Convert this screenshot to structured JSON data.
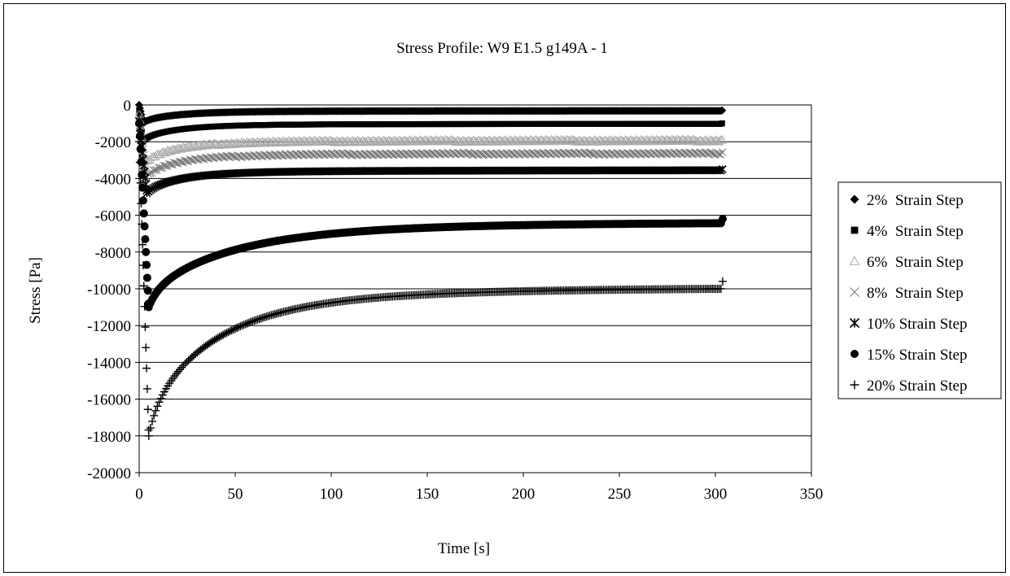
{
  "chart_data": {
    "type": "scatter",
    "title": "Stress Profile: W9 E1.5 g149A - 1",
    "xlabel": "Time [s]",
    "ylabel": "Stress [Pa]",
    "xlim": [
      0,
      350
    ],
    "ylim": [
      -20000,
      0
    ],
    "x_ticks": [
      "0",
      "50",
      "100",
      "150",
      "200",
      "250",
      "300",
      "350"
    ],
    "y_ticks": [
      "0",
      "-2000",
      "-4000",
      "-6000",
      "-8000",
      "-10000",
      "-12000",
      "-14000",
      "-16000",
      "-18000",
      "-20000"
    ],
    "grid": "horizontal",
    "legend_position": "right",
    "series": [
      {
        "name": "2%  Strain Step",
        "marker": "diamond",
        "color": "#000000",
        "peak_time": 2,
        "peak_stress": -1000,
        "final_time": 304,
        "final_stress": -300,
        "rate": 0.05,
        "points": [
          [
            0,
            0
          ],
          [
            2,
            -1000
          ],
          [
            10,
            -700
          ],
          [
            50,
            -450
          ],
          [
            100,
            -380
          ],
          [
            200,
            -330
          ],
          [
            304,
            -300
          ]
        ]
      },
      {
        "name": "4%  Strain Step",
        "marker": "square",
        "color": "#000000",
        "peak_time": 2,
        "peak_stress": -2000,
        "final_time": 304,
        "final_stress": -1000,
        "rate": 0.05,
        "points": [
          [
            0,
            -300
          ],
          [
            2,
            -2000
          ],
          [
            10,
            -1400
          ],
          [
            50,
            -1150
          ],
          [
            100,
            -1080
          ],
          [
            200,
            -1030
          ],
          [
            304,
            -1000
          ]
        ]
      },
      {
        "name": "6%  Strain Step",
        "marker": "triangle",
        "color": "#aaaaaa",
        "peak_time": 3,
        "peak_stress": -3200,
        "final_time": 304,
        "final_stress": -1900,
        "rate": 0.05,
        "points": [
          [
            0,
            -500
          ],
          [
            3,
            -3200
          ],
          [
            10,
            -2500
          ],
          [
            50,
            -2150
          ],
          [
            100,
            -2050
          ],
          [
            200,
            -1950
          ],
          [
            304,
            -1900
          ]
        ]
      },
      {
        "name": "8%  Strain Step",
        "marker": "x",
        "color": "#777777",
        "peak_time": 3,
        "peak_stress": -4000,
        "final_time": 304,
        "final_stress": -2600,
        "rate": 0.05,
        "points": [
          [
            0,
            -700
          ],
          [
            3,
            -4000
          ],
          [
            10,
            -3200
          ],
          [
            50,
            -2900
          ],
          [
            100,
            -2780
          ],
          [
            200,
            -2680
          ],
          [
            304,
            -2600
          ]
        ]
      },
      {
        "name": "10% Strain Step",
        "marker": "asterisk",
        "color": "#000000",
        "peak_time": 4,
        "peak_stress": -4800,
        "final_time": 304,
        "final_stress": -3500,
        "rate": 0.05,
        "points": [
          [
            0,
            -900
          ],
          [
            4,
            -4800
          ],
          [
            10,
            -4200
          ],
          [
            50,
            -3850
          ],
          [
            100,
            -3700
          ],
          [
            200,
            -3580
          ],
          [
            304,
            -3500
          ]
        ]
      },
      {
        "name": "15% Strain Step",
        "marker": "circle",
        "color": "#000000",
        "peak_time": 5,
        "peak_stress": -11000,
        "final_time": 304,
        "final_stress": -6200,
        "rate": 0.02,
        "points": [
          [
            0,
            -1000
          ],
          [
            5,
            -11000
          ],
          [
            20,
            -9000
          ],
          [
            50,
            -7800
          ],
          [
            100,
            -7000
          ],
          [
            200,
            -6500
          ],
          [
            304,
            -6200
          ]
        ]
      },
      {
        "name": "20% Strain Step",
        "marker": "plus",
        "color": "#000000",
        "peak_time": 5,
        "peak_stress": -18000,
        "final_time": 304,
        "final_stress": -9600,
        "rate": 0.025,
        "points": [
          [
            0,
            -2000
          ],
          [
            5,
            -18000
          ],
          [
            20,
            -14500
          ],
          [
            50,
            -12500
          ],
          [
            100,
            -11200
          ],
          [
            200,
            -10200
          ],
          [
            304,
            -9600
          ]
        ]
      }
    ]
  }
}
